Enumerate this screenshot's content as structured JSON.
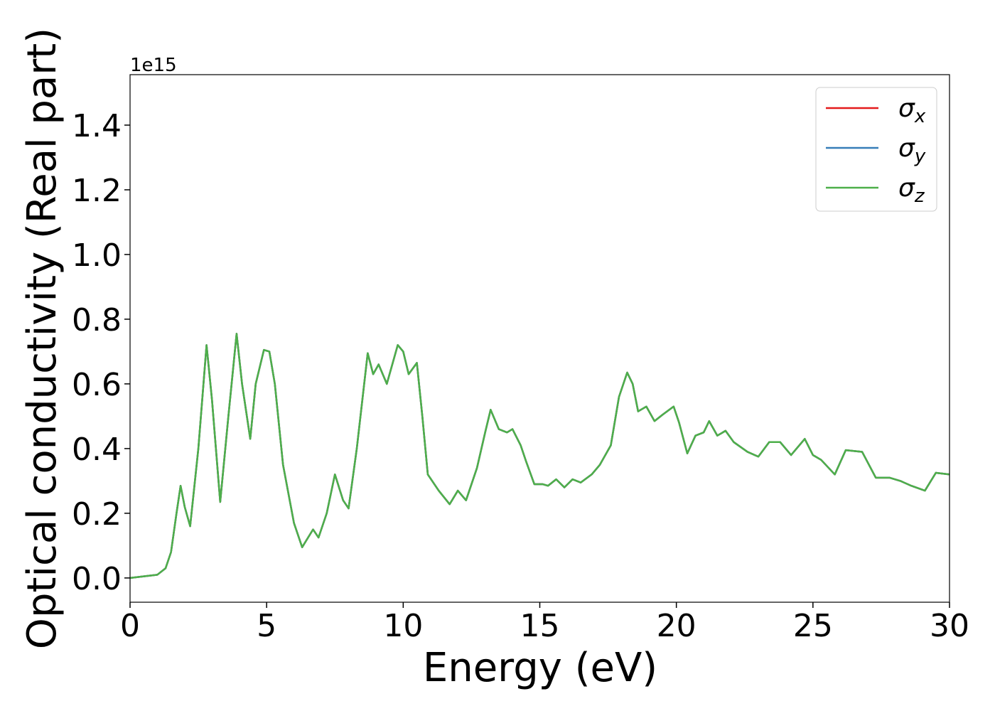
{
  "chart_data": {
    "type": "line",
    "x_label": "Energy (eV)",
    "y_label": "Optical conductivity (Real part)",
    "y_offset_label": "1e15",
    "x": [
      0,
      0.5,
      1.0,
      1.3,
      1.5,
      1.7,
      1.85,
      2.0,
      2.2,
      2.5,
      2.8,
      3.0,
      3.3,
      3.6,
      3.9,
      4.1,
      4.4,
      4.6,
      4.9,
      5.1,
      5.3,
      5.6,
      6.0,
      6.3,
      6.7,
      6.9,
      7.2,
      7.5,
      7.8,
      8.0,
      8.3,
      8.7,
      8.9,
      9.1,
      9.4,
      9.8,
      10.0,
      10.2,
      10.5,
      10.7,
      10.9,
      11.3,
      11.7,
      12.0,
      12.3,
      12.7,
      13.0,
      13.2,
      13.5,
      13.8,
      14.0,
      14.3,
      14.5,
      14.8,
      15.1,
      15.3,
      15.6,
      15.9,
      16.2,
      16.5,
      16.9,
      17.2,
      17.6,
      17.9,
      18.2,
      18.4,
      18.6,
      18.9,
      19.2,
      19.5,
      19.9,
      20.1,
      20.4,
      20.7,
      21.0,
      21.2,
      21.5,
      21.8,
      22.1,
      22.6,
      23.0,
      23.4,
      23.8,
      24.2,
      24.7,
      25.0,
      25.3,
      25.8,
      26.2,
      26.8,
      27.3,
      27.8,
      28.2,
      28.6,
      29.1,
      29.5,
      30.0
    ],
    "series": [
      {
        "name": "σx",
        "color": "#e41a1c",
        "values": [
          0.0,
          0.005,
          0.01,
          0.03,
          0.08,
          0.2,
          0.285,
          0.22,
          0.16,
          0.4,
          0.72,
          0.55,
          0.235,
          0.5,
          0.755,
          0.6,
          0.43,
          0.6,
          0.705,
          0.7,
          0.6,
          0.35,
          0.17,
          0.095,
          0.15,
          0.125,
          0.2,
          0.32,
          0.24,
          0.215,
          0.4,
          0.695,
          0.63,
          0.66,
          0.6,
          0.72,
          0.7,
          0.63,
          0.665,
          0.5,
          0.32,
          0.27,
          0.228,
          0.27,
          0.24,
          0.34,
          0.45,
          0.52,
          0.46,
          0.45,
          0.46,
          0.41,
          0.36,
          0.29,
          0.29,
          0.285,
          0.305,
          0.28,
          0.305,
          0.295,
          0.32,
          0.35,
          0.41,
          0.56,
          0.635,
          0.6,
          0.515,
          0.53,
          0.485,
          0.505,
          0.53,
          0.48,
          0.385,
          0.44,
          0.45,
          0.485,
          0.44,
          0.455,
          0.42,
          0.39,
          0.375,
          0.42,
          0.42,
          0.38,
          0.43,
          0.38,
          0.365,
          0.32,
          0.395,
          0.39,
          0.31,
          0.31,
          0.3,
          0.285,
          0.27,
          0.325,
          0.32
        ]
      },
      {
        "name": "σy",
        "color": "#377eb8",
        "values": [
          0.0,
          0.005,
          0.01,
          0.03,
          0.08,
          0.2,
          0.285,
          0.22,
          0.16,
          0.4,
          0.72,
          0.55,
          0.235,
          0.5,
          0.755,
          0.6,
          0.43,
          0.6,
          0.705,
          0.7,
          0.6,
          0.35,
          0.17,
          0.095,
          0.15,
          0.125,
          0.2,
          0.32,
          0.24,
          0.215,
          0.4,
          0.695,
          0.63,
          0.66,
          0.6,
          0.72,
          0.7,
          0.63,
          0.665,
          0.5,
          0.32,
          0.27,
          0.228,
          0.27,
          0.24,
          0.34,
          0.45,
          0.52,
          0.46,
          0.45,
          0.46,
          0.41,
          0.36,
          0.29,
          0.29,
          0.285,
          0.305,
          0.28,
          0.305,
          0.295,
          0.32,
          0.35,
          0.41,
          0.56,
          0.635,
          0.6,
          0.515,
          0.53,
          0.485,
          0.505,
          0.53,
          0.48,
          0.385,
          0.44,
          0.45,
          0.485,
          0.44,
          0.455,
          0.42,
          0.39,
          0.375,
          0.42,
          0.42,
          0.38,
          0.43,
          0.38,
          0.365,
          0.32,
          0.395,
          0.39,
          0.31,
          0.31,
          0.3,
          0.285,
          0.27,
          0.325,
          0.32
        ]
      },
      {
        "name": "σz",
        "color": "#4daf4a",
        "values": [
          0.0,
          0.005,
          0.01,
          0.03,
          0.08,
          0.2,
          0.285,
          0.22,
          0.16,
          0.4,
          0.72,
          0.55,
          0.235,
          0.5,
          0.755,
          0.6,
          0.43,
          0.6,
          0.705,
          0.7,
          0.6,
          0.35,
          0.17,
          0.095,
          0.15,
          0.125,
          0.2,
          0.32,
          0.24,
          0.215,
          0.4,
          0.695,
          0.63,
          0.66,
          0.6,
          0.72,
          0.7,
          0.63,
          0.665,
          0.5,
          0.32,
          0.27,
          0.228,
          0.27,
          0.24,
          0.34,
          0.45,
          0.52,
          0.46,
          0.45,
          0.46,
          0.41,
          0.36,
          0.29,
          0.29,
          0.285,
          0.305,
          0.28,
          0.305,
          0.295,
          0.32,
          0.35,
          0.41,
          0.56,
          0.635,
          0.6,
          0.515,
          0.53,
          0.485,
          0.505,
          0.53,
          0.48,
          0.385,
          0.44,
          0.45,
          0.485,
          0.44,
          0.455,
          0.42,
          0.39,
          0.375,
          0.42,
          0.42,
          0.38,
          0.43,
          0.38,
          0.365,
          0.32,
          0.395,
          0.39,
          0.31,
          0.31,
          0.3,
          0.285,
          0.27,
          0.325,
          0.32
        ]
      }
    ],
    "xlim": [
      0,
      30
    ],
    "xticks": [
      0,
      5,
      10,
      15,
      20,
      25,
      30
    ],
    "ylim": [
      -0.075,
      1.556
    ],
    "yticks": [
      {
        "value": 0,
        "label": "0.0"
      },
      {
        "value": 0.2,
        "label": "0.2"
      },
      {
        "value": 0.4,
        "label": "0.4"
      },
      {
        "value": 0.6,
        "label": "0.6"
      },
      {
        "value": 0.8,
        "label": "0.8"
      },
      {
        "value": 1.0,
        "label": "1.0"
      },
      {
        "value": 1.2,
        "label": "1.2"
      },
      {
        "value": 1.4,
        "label": "1.4"
      }
    ],
    "legend": "upper right",
    "grid": false
  }
}
